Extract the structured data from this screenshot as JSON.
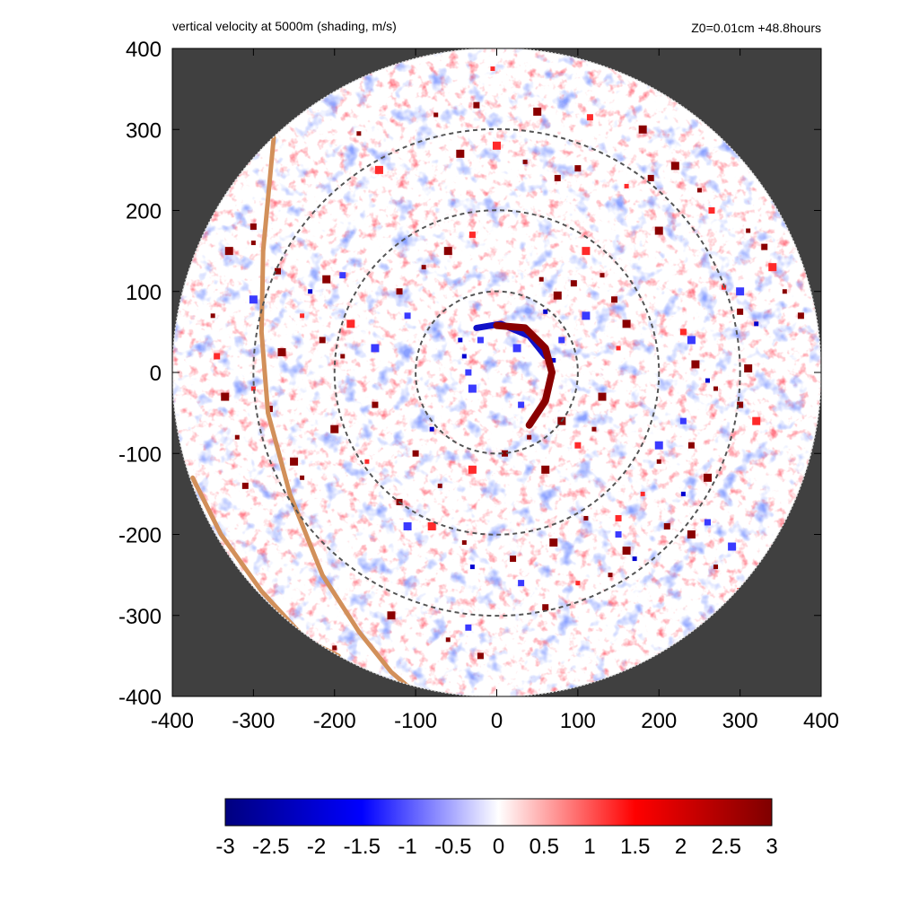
{
  "chart_data": {
    "type": "heatmap",
    "title": "vertical velocity at 5000m (shading, m/s)",
    "subtitle": "Z0=0.01cm  +48.8hours",
    "xlabel": "",
    "ylabel": "",
    "xlim": [
      -400,
      400
    ],
    "ylim": [
      -400,
      400
    ],
    "x_ticks": [
      "-400",
      "-300",
      "-200",
      "-100",
      "0",
      "100",
      "200",
      "300",
      "400"
    ],
    "y_ticks": [
      "400",
      "300",
      "200",
      "100",
      "0",
      "-100",
      "-200",
      "-300",
      "-400"
    ],
    "domain_radius": 400,
    "range_rings": [
      100,
      200,
      300
    ],
    "background_color": "#404040",
    "colorbar": {
      "min": -3,
      "max": 3,
      "ticks": [
        "-3",
        "-2.5",
        "-2",
        "-1.5",
        "-1",
        "-0.5",
        "0",
        "0.5",
        "1",
        "1.5",
        "2",
        "2.5",
        "3"
      ],
      "colors": [
        "#00007f",
        "#0000ff",
        "#ffffff",
        "#ff0000",
        "#7f0000"
      ]
    },
    "coastline_color": "#d2905a",
    "coastlines": [
      [
        [
          -275,
          290
        ],
        [
          -288,
          150
        ],
        [
          -290,
          50
        ],
        [
          -282,
          -50
        ],
        [
          -255,
          -150
        ],
        [
          -215,
          -250
        ],
        [
          -170,
          -320
        ],
        [
          -130,
          -370
        ],
        [
          -95,
          -400
        ]
      ],
      [
        [
          -375,
          -130
        ],
        [
          -340,
          -200
        ],
        [
          -290,
          -270
        ],
        [
          -235,
          -330
        ],
        [
          -195,
          -350
        ]
      ]
    ],
    "eyewall_arc": [
      [
        0,
        58
      ],
      [
        35,
        55
      ],
      [
        60,
        30
      ],
      [
        68,
        0
      ],
      [
        60,
        -35
      ],
      [
        40,
        -65
      ]
    ],
    "downdraft_arc": [
      [
        -25,
        55
      ],
      [
        5,
        60
      ],
      [
        40,
        45
      ],
      [
        60,
        20
      ]
    ],
    "updraft_cells": [
      [
        -5,
        375
      ],
      [
        -25,
        330
      ],
      [
        50,
        322
      ],
      [
        -75,
        318
      ],
      [
        115,
        315
      ],
      [
        180,
        300
      ],
      [
        -170,
        295
      ],
      [
        100,
        252
      ],
      [
        -145,
        250
      ],
      [
        -300,
        160
      ],
      [
        -270,
        125
      ],
      [
        -210,
        115
      ],
      [
        -240,
        70
      ],
      [
        -215,
        40
      ],
      [
        220,
        255
      ],
      [
        250,
        225
      ],
      [
        265,
        200
      ],
      [
        200,
        175
      ],
      [
        310,
        175
      ],
      [
        330,
        155
      ],
      [
        340,
        130
      ],
      [
        355,
        100
      ],
      [
        375,
        70
      ],
      [
        -265,
        25
      ],
      [
        -300,
        -20
      ],
      [
        -280,
        -45
      ],
      [
        -250,
        -110
      ],
      [
        -240,
        -130
      ],
      [
        230,
        50
      ],
      [
        245,
        10
      ],
      [
        270,
        -20
      ],
      [
        300,
        -40
      ],
      [
        320,
        -60
      ],
      [
        200,
        -110
      ],
      [
        240,
        -90
      ],
      [
        260,
        -130
      ],
      [
        180,
        -150
      ],
      [
        210,
        -190
      ],
      [
        240,
        -200
      ],
      [
        270,
        -240
      ],
      [
        300,
        -270
      ],
      [
        160,
        -220
      ],
      [
        140,
        -250
      ],
      [
        -120,
        -160
      ],
      [
        -80,
        -190
      ],
      [
        -40,
        -210
      ],
      [
        20,
        -230
      ],
      [
        70,
        -210
      ],
      [
        100,
        -260
      ],
      [
        60,
        -290
      ],
      [
        -130,
        -300
      ],
      [
        -200,
        -340
      ],
      [
        -240,
        -370
      ],
      [
        -160,
        -380
      ],
      [
        -60,
        -330
      ],
      [
        -20,
        -350
      ],
      [
        110,
        150
      ],
      [
        130,
        120
      ],
      [
        145,
        90
      ],
      [
        160,
        60
      ],
      [
        150,
        30
      ],
      [
        95,
        110
      ],
      [
        75,
        95
      ],
      [
        55,
        115
      ],
      [
        -30,
        170
      ],
      [
        -60,
        150
      ],
      [
        -90,
        130
      ],
      [
        -120,
        100
      ],
      [
        -180,
        60
      ],
      [
        -190,
        20
      ],
      [
        -150,
        -40
      ],
      [
        -200,
        -70
      ],
      [
        -160,
        -110
      ],
      [
        -100,
        -100
      ],
      [
        130,
        -30
      ],
      [
        120,
        -70
      ],
      [
        100,
        -90
      ],
      [
        80,
        -60
      ],
      [
        40,
        -80
      ],
      [
        10,
        -100
      ],
      [
        -30,
        -120
      ],
      [
        -70,
        -140
      ],
      [
        300,
        75
      ],
      [
        310,
        5
      ],
      [
        280,
        105
      ],
      [
        -300,
        180
      ],
      [
        -330,
        150
      ],
      [
        -350,
        70
      ],
      [
        -345,
        20
      ],
      [
        -335,
        -30
      ],
      [
        -320,
        -80
      ],
      [
        -310,
        -140
      ],
      [
        0,
        280
      ],
      [
        35,
        260
      ],
      [
        75,
        240
      ],
      [
        -45,
        270
      ],
      [
        160,
        230
      ],
      [
        190,
        240
      ],
      [
        60,
        -120
      ],
      [
        110,
        -180
      ],
      [
        150,
        -180
      ]
    ],
    "downdraft_cells": [
      [
        -40,
        20
      ],
      [
        -35,
        0
      ],
      [
        -30,
        -20
      ],
      [
        -45,
        40
      ],
      [
        -20,
        40
      ],
      [
        25,
        30
      ],
      [
        70,
        15
      ],
      [
        80,
        40
      ],
      [
        240,
        40
      ],
      [
        260,
        -10
      ],
      [
        230,
        -60
      ],
      [
        200,
        -90
      ],
      [
        230,
        -150
      ],
      [
        260,
        -185
      ],
      [
        290,
        -215
      ],
      [
        170,
        -230
      ],
      [
        150,
        -200
      ],
      [
        -110,
        -190
      ],
      [
        -30,
        -240
      ],
      [
        30,
        -260
      ],
      [
        300,
        100
      ],
      [
        320,
        60
      ],
      [
        290,
        -290
      ],
      [
        -300,
        90
      ],
      [
        -230,
        100
      ],
      [
        -190,
        120
      ],
      [
        110,
        70
      ],
      [
        60,
        75
      ],
      [
        -110,
        70
      ],
      [
        -150,
        30
      ],
      [
        -80,
        -70
      ],
      [
        30,
        -40
      ],
      [
        -160,
        -390
      ],
      [
        -230,
        -350
      ],
      [
        -35,
        -315
      ]
    ]
  }
}
